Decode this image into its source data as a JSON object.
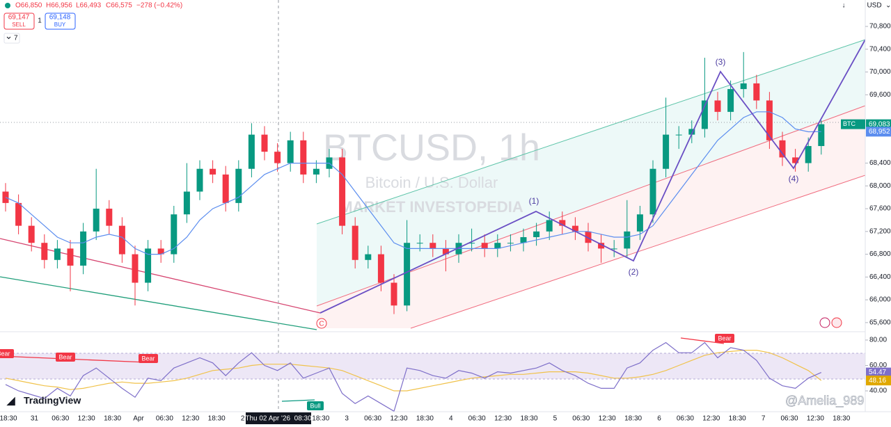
{
  "header": {
    "open": "O66,850",
    "high": "H66,956",
    "low": "L66,493",
    "close": "C66,575",
    "change": "−278 (−0.42%)",
    "sell_price": "69,147",
    "sell": "SELL",
    "quantity": "1",
    "buy_price": "69,148",
    "buy": "BUY",
    "indicators_count": "7",
    "currency": "USD"
  },
  "chart_data": {
    "type": "candlestick",
    "watermark_symbol": "BTCUSD, 1h",
    "watermark_description": "Bitcoin / U.S. Dollar",
    "watermark_brand": "MARKET INVESTOPEDIA",
    "colors": {
      "up": "#089981",
      "down": "#f23645"
    },
    "ylim": [
      65464,
      71264
    ],
    "yticks": [
      {
        "value": 70800,
        "label": "70,800"
      },
      {
        "value": 70400,
        "label": "70,400"
      },
      {
        "value": 70000,
        "label": "70,000"
      },
      {
        "value": 69600,
        "label": "69,600"
      },
      {
        "value": 68400,
        "label": "68,400"
      },
      {
        "value": 68000,
        "label": "68,000"
      },
      {
        "value": 67600,
        "label": "67,600"
      },
      {
        "value": 67200,
        "label": "67,200"
      },
      {
        "value": 66800,
        "label": "66,800"
      },
      {
        "value": 66400,
        "label": "66,400"
      },
      {
        "value": 66000,
        "label": "66,000"
      },
      {
        "value": 65600,
        "label": "65,600"
      }
    ],
    "ohlc": [
      [
        67900,
        68050,
        67550,
        67700
      ],
      [
        67700,
        67850,
        67150,
        67300
      ],
      [
        67300,
        67450,
        66850,
        67000
      ],
      [
        67000,
        67150,
        66550,
        66700
      ],
      [
        66700,
        67050,
        66550,
        66900
      ],
      [
        66900,
        67050,
        66150,
        66600
      ],
      [
        66600,
        67350,
        66450,
        67200
      ],
      [
        67200,
        68300,
        67050,
        67600
      ],
      [
        67600,
        67750,
        67150,
        67300
      ],
      [
        67300,
        67450,
        66650,
        66800
      ],
      [
        66800,
        66950,
        65900,
        66300
      ],
      [
        66300,
        67050,
        66150,
        66900
      ],
      [
        66900,
        67050,
        66650,
        66800
      ],
      [
        66800,
        67650,
        66650,
        67500
      ],
      [
        67500,
        68400,
        67350,
        67900
      ],
      [
        67900,
        68450,
        67750,
        68300
      ],
      [
        68300,
        68450,
        68050,
        68200
      ],
      [
        68200,
        68350,
        67550,
        67700
      ],
      [
        67700,
        68450,
        67550,
        68300
      ],
      [
        68300,
        69100,
        68150,
        68900
      ],
      [
        68900,
        69050,
        68450,
        68600
      ],
      [
        68600,
        68750,
        68250,
        68400
      ],
      [
        68400,
        68950,
        68250,
        68800
      ],
      [
        68800,
        68950,
        68050,
        68200
      ],
      [
        68200,
        68450,
        68050,
        68300
      ],
      [
        68300,
        68650,
        68150,
        68500
      ],
      [
        68500,
        68650,
        67150,
        67300
      ],
      [
        67300,
        67450,
        66550,
        66700
      ],
      [
        66700,
        66950,
        66550,
        66800
      ],
      [
        66800,
        66950,
        66150,
        66300
      ],
      [
        66300,
        66450,
        65750,
        65900
      ],
      [
        65900,
        67400,
        65800,
        67000
      ],
      [
        67000,
        67150,
        66850,
        67000
      ],
      [
        67000,
        67150,
        66750,
        66900
      ],
      [
        66900,
        67050,
        66500,
        66800
      ],
      [
        66800,
        67150,
        66650,
        67000
      ],
      [
        67000,
        67250,
        66850,
        67000
      ],
      [
        67000,
        67150,
        66750,
        66900
      ],
      [
        66900,
        67150,
        66750,
        67000
      ],
      [
        67000,
        67150,
        66850,
        67000
      ],
      [
        67000,
        67250,
        66850,
        67100
      ],
      [
        67100,
        67350,
        66950,
        67200
      ],
      [
        67200,
        67550,
        67050,
        67400
      ],
      [
        67400,
        67550,
        67150,
        67300
      ],
      [
        67300,
        67450,
        67050,
        67200
      ],
      [
        67200,
        67350,
        66850,
        67000
      ],
      [
        67000,
        67150,
        66650,
        66900
      ],
      [
        66900,
        67050,
        66750,
        66900
      ],
      [
        66900,
        67750,
        66750,
        67200
      ],
      [
        67200,
        67650,
        67050,
        67500
      ],
      [
        67500,
        68450,
        67350,
        68300
      ],
      [
        68300,
        69550,
        68150,
        68900
      ],
      [
        68900,
        69050,
        68650,
        68900
      ],
      [
        68900,
        69150,
        68750,
        69000
      ],
      [
        69000,
        70250,
        68850,
        69500
      ],
      [
        69500,
        69650,
        69150,
        69300
      ],
      [
        69300,
        69850,
        69150,
        69700
      ],
      [
        69700,
        70350,
        69550,
        69800
      ],
      [
        69800,
        69950,
        69350,
        69500
      ],
      [
        69500,
        69650,
        68650,
        68800
      ],
      [
        68800,
        68950,
        68350,
        68500
      ],
      [
        68500,
        68650,
        68250,
        68400
      ],
      [
        68400,
        68850,
        68250,
        68700
      ],
      [
        68700,
        69150,
        68550,
        69083
      ]
    ],
    "ma": {
      "color": "#5b8def",
      "values": [
        67800,
        67700,
        67500,
        67300,
        67100,
        67000,
        67000,
        67100,
        67150,
        67100,
        66900,
        66800,
        66800,
        66900,
        67100,
        67400,
        67600,
        67700,
        67800,
        68000,
        68200,
        68300,
        68400,
        68400,
        68400,
        68400,
        68200,
        67900,
        67600,
        67300,
        67000,
        66900,
        66900,
        66900,
        66900,
        66900,
        66900,
        66900,
        66900,
        66950,
        67000,
        67050,
        67100,
        67150,
        67200,
        67200,
        67150,
        67100,
        67100,
        67150,
        67300,
        67600,
        67900,
        68200,
        68500,
        68800,
        69000,
        69200,
        69300,
        69300,
        69200,
        69000,
        68950,
        68952
      ]
    },
    "symbol_tag": "BTC",
    "last_price": {
      "value": 69083,
      "label": "69,083"
    },
    "ma_price": {
      "value": 68952,
      "label": "68,952"
    },
    "wave_labels": [
      "(1)",
      "(2)",
      "(3)",
      "(4)",
      "C"
    ],
    "x_labels": [
      "18:30",
      "31",
      "06:30",
      "12:30",
      "18:30",
      "Apr",
      "06:30",
      "12:30",
      "18:30",
      "2",
      null,
      null,
      "18:30",
      "3",
      "06:30",
      "12:30",
      "18:30",
      "4",
      "06:30",
      "12:30",
      "18:30",
      "5",
      "06:30",
      "12:30",
      "18:30",
      "6",
      "06:30",
      "12:30",
      "18:30",
      "7",
      "06:30",
      "12:30",
      "18:30"
    ],
    "crosshair_time": "Thu 02 Apr '26  08:30",
    "rsi": {
      "color": "#7e6fc9",
      "ma_color": "#f0c24a",
      "ylim": [
        23.6,
        86
      ],
      "yticks": [
        {
          "value": 80,
          "label": "80.00"
        },
        {
          "value": 60,
          "label": "60.00"
        },
        {
          "value": 40,
          "label": "40.00"
        }
      ],
      "values": [
        45,
        40,
        37,
        34,
        42,
        36,
        52,
        58,
        50,
        42,
        35,
        50,
        48,
        58,
        62,
        66,
        62,
        52,
        62,
        70,
        60,
        56,
        62,
        50,
        54,
        58,
        38,
        30,
        36,
        30,
        24,
        58,
        56,
        52,
        50,
        56,
        54,
        50,
        55,
        54,
        56,
        58,
        62,
        56,
        52,
        46,
        42,
        42,
        58,
        62,
        72,
        78,
        70,
        70,
        78,
        66,
        74,
        72,
        64,
        50,
        44,
        42,
        50,
        54.47
      ],
      "ma": [
        50,
        48,
        46,
        44,
        43,
        41,
        42,
        44,
        46,
        47,
        46,
        46,
        47,
        48,
        50,
        53,
        56,
        57,
        58,
        60,
        61,
        61,
        61,
        60,
        59,
        58,
        56,
        52,
        48,
        44,
        40,
        40,
        42,
        44,
        46,
        48,
        50,
        51,
        52,
        53,
        53,
        54,
        55,
        55,
        55,
        54,
        52,
        50,
        50,
        51,
        53,
        56,
        60,
        64,
        68,
        70,
        71,
        72,
        72,
        70,
        66,
        61,
        56,
        48.16
      ],
      "labels": [
        "Bear",
        "Bear",
        "Bear",
        "Bear",
        "Bull"
      ]
    }
  },
  "footer": {
    "brand": "TradingView",
    "watermark": "@Amelia_989"
  }
}
